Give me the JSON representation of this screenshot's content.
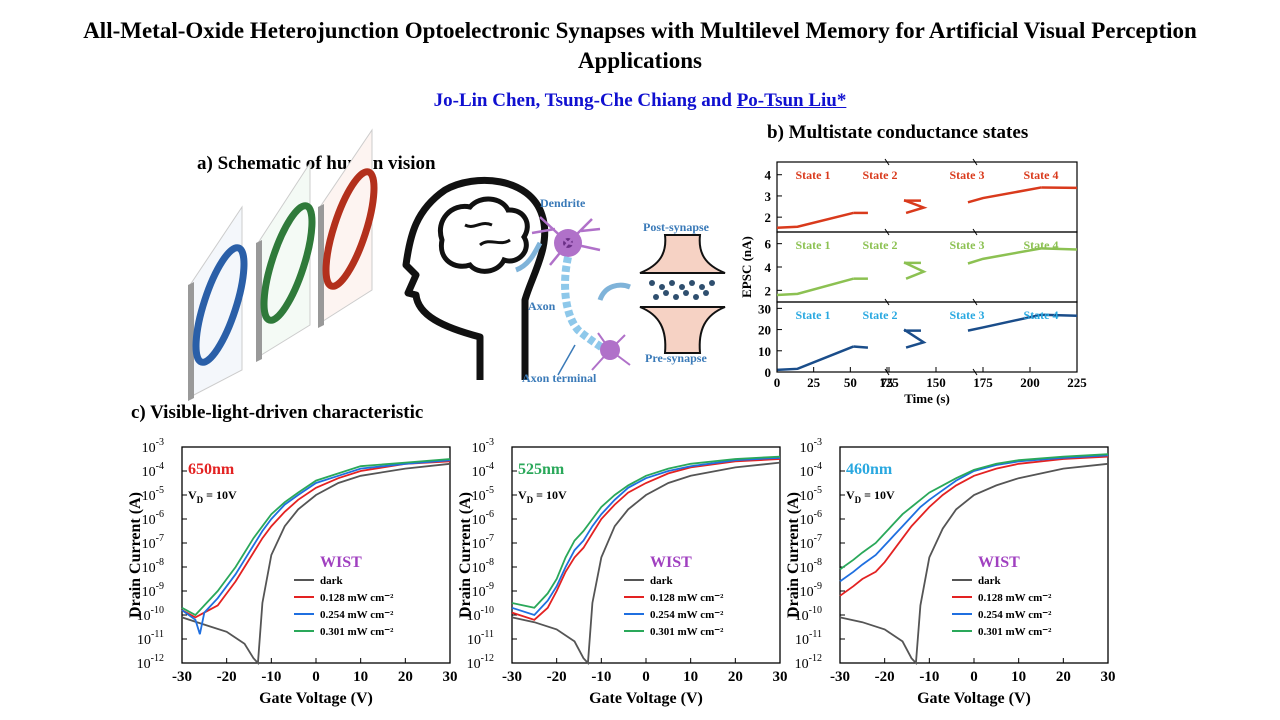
{
  "title": "All-Metal-Oxide Heterojunction Optoelectronic Synapses with Multilevel Memory for Artificial Visual Perception Applications",
  "authors": {
    "plain": "Jo-Lin Chen, Tsung-Che Chiang and ",
    "underlined": "Po-Tsun Liu*"
  },
  "panel_a": {
    "heading": "a) Schematic of human vision",
    "labels": {
      "dendrite": "Dendrite",
      "axon": "Axon",
      "axon_terminal": "Axon terminal",
      "post": "Post-synapse",
      "pre": "Pre-synapse"
    }
  },
  "panel_b": {
    "heading": "b) Multistate conductance states"
  },
  "panel_c": {
    "heading": "c) Visible-light-driven characteristic"
  },
  "colors": {
    "author": "#1010d0",
    "red": "#e32222",
    "blue": "#1f6fe0",
    "green": "#2aa85a",
    "dark": "#555555",
    "wist": "#a040c0",
    "b_red": "#d93a1c",
    "b_green": "#8cc152",
    "b_blue": "#1a4d8a",
    "b_label_blue": "#29a8e0"
  },
  "chart_data": [
    {
      "type": "line",
      "title": "b) Multistate conductance states",
      "xlabel": "Time (s)",
      "ylabel": "EPSC (nA)",
      "xticks": [
        "0",
        "25",
        "50",
        "75",
        "125",
        "150",
        "175",
        "200",
        "225"
      ],
      "panels": [
        {
          "yticks": [
            "2",
            "3",
            "4"
          ],
          "ylim": [
            1.3,
            4.6
          ],
          "color_name": "red",
          "state_labels": [
            "State 1",
            "State 2",
            "State 3",
            "State 4"
          ],
          "segments": [
            {
              "x": [
                0,
                14,
                52
              ],
              "y": [
                1.5,
                1.55,
                2.2
              ]
            },
            {
              "x": [
                52,
                62
              ],
              "y": [
                2.2,
                2.2
              ]
            },
            {
              "x": [
                88,
                100,
                133
              ],
              "y": [
                2.2,
                2.45,
                2.8
              ]
            },
            {
              "x": [
                133,
                142
              ],
              "y": [
                2.78,
                2.78
              ]
            },
            {
              "x": [
                167,
                175,
                206
              ],
              "y": [
                2.7,
                2.9,
                3.4
              ]
            },
            {
              "x": [
                206,
                225
              ],
              "y": [
                3.4,
                3.38
              ]
            }
          ]
        },
        {
          "yticks": [
            "2",
            "4",
            "6"
          ],
          "ylim": [
            1.0,
            7.0
          ],
          "color_name": "green",
          "state_labels": [
            "State 1",
            "State 2",
            "State 3",
            "State 4"
          ],
          "segments": [
            {
              "x": [
                0,
                14,
                52
              ],
              "y": [
                1.6,
                1.7,
                3.0
              ]
            },
            {
              "x": [
                52,
                62
              ],
              "y": [
                3.0,
                3.0
              ]
            },
            {
              "x": [
                88,
                100,
                133
              ],
              "y": [
                3.0,
                3.6,
                4.4
              ]
            },
            {
              "x": [
                133,
                142
              ],
              "y": [
                4.35,
                4.35
              ]
            },
            {
              "x": [
                167,
                175,
                206
              ],
              "y": [
                4.3,
                4.7,
                5.6
              ]
            },
            {
              "x": [
                206,
                225
              ],
              "y": [
                5.6,
                5.5
              ]
            }
          ]
        },
        {
          "yticks": [
            "0",
            "10",
            "20",
            "30"
          ],
          "ylim": [
            0,
            33
          ],
          "color_name": "blue",
          "state_labels": [
            "State 1",
            "State 2",
            "State 3",
            "State 4"
          ],
          "segments": [
            {
              "x": [
                0,
                14,
                52
              ],
              "y": [
                1,
                1.5,
                12
              ]
            },
            {
              "x": [
                52,
                62
              ],
              "y": [
                12,
                11.5
              ]
            },
            {
              "x": [
                88,
                100,
                133
              ],
              "y": [
                11.5,
                14,
                20
              ]
            },
            {
              "x": [
                133,
                142
              ],
              "y": [
                19.5,
                19.5
              ]
            },
            {
              "x": [
                167,
                175,
                206
              ],
              "y": [
                19.5,
                21,
                27
              ]
            },
            {
              "x": [
                206,
                225
              ],
              "y": [
                27,
                26.5
              ]
            }
          ]
        }
      ]
    },
    {
      "type": "line",
      "log_y": true,
      "label": "650nm",
      "label_color": "#e32222",
      "condition": "V_D = 10V",
      "legend_title": "WIST",
      "legend": [
        "dark",
        "0.128 mW cm⁻²",
        "0.254 mW cm⁻²",
        "0.301 mW cm⁻²"
      ],
      "xlabel": "Gate Voltage (V)",
      "ylabel": "Drain Current (A)",
      "xlim": [
        -30,
        30
      ],
      "ylim_exp": [
        -12,
        -3
      ],
      "series": [
        {
          "color_name": "dark",
          "x": [
            -30,
            -25,
            -20,
            -16,
            -14,
            -13,
            -12,
            -10,
            -7,
            -4,
            0,
            5,
            10,
            20,
            30
          ],
          "y_exp": [
            -10.1,
            -10.4,
            -10.7,
            -11.2,
            -11.8,
            -12,
            -9.5,
            -7.5,
            -6.3,
            -5.6,
            -5.0,
            -4.5,
            -4.2,
            -3.9,
            -3.7
          ]
        },
        {
          "color_name": "red",
          "x": [
            -30,
            -27,
            -25,
            -22,
            -20,
            -18,
            -16,
            -14,
            -12,
            -10,
            -7,
            -4,
            0,
            5,
            10,
            20,
            30
          ],
          "y_exp": [
            -9.8,
            -10.1,
            -9.9,
            -9.6,
            -9.1,
            -8.6,
            -8.0,
            -7.4,
            -6.8,
            -6.3,
            -5.7,
            -5.2,
            -4.7,
            -4.3,
            -4.0,
            -3.7,
            -3.6
          ]
        },
        {
          "color_name": "blue",
          "x": [
            -30,
            -27,
            -26,
            -25,
            -22,
            -20,
            -18,
            -16,
            -14,
            -12,
            -10,
            -7,
            -4,
            0,
            5,
            10,
            20,
            30
          ],
          "y_exp": [
            -9.8,
            -10.2,
            -10.8,
            -9.9,
            -9.3,
            -8.8,
            -8.3,
            -7.7,
            -7.1,
            -6.5,
            -6.0,
            -5.4,
            -5.0,
            -4.5,
            -4.2,
            -3.9,
            -3.7,
            -3.55
          ]
        },
        {
          "color_name": "green",
          "x": [
            -30,
            -27,
            -25,
            -22,
            -20,
            -18,
            -16,
            -14,
            -12,
            -10,
            -7,
            -4,
            0,
            5,
            10,
            20,
            30
          ],
          "y_exp": [
            -9.7,
            -10.0,
            -9.6,
            -9.0,
            -8.5,
            -8.0,
            -7.4,
            -6.8,
            -6.3,
            -5.8,
            -5.3,
            -4.9,
            -4.4,
            -4.1,
            -3.8,
            -3.65,
            -3.5
          ]
        }
      ]
    },
    {
      "type": "line",
      "log_y": true,
      "label": "525nm",
      "label_color": "#2aa85a",
      "condition": "V_D = 10V",
      "legend_title": "WIST",
      "legend": [
        "dark",
        "0.128 mW cm⁻²",
        "0.254 mW cm⁻²",
        "0.301 mW cm⁻²"
      ],
      "xlabel": "Gate Voltage (V)",
      "ylabel": "Drain Current (A)",
      "xlim": [
        -30,
        30
      ],
      "ylim_exp": [
        -12,
        -3
      ],
      "series": [
        {
          "color_name": "dark",
          "x": [
            -30,
            -25,
            -20,
            -16,
            -14,
            -13,
            -12,
            -10,
            -7,
            -4,
            0,
            5,
            10,
            20,
            30
          ],
          "y_exp": [
            -10.1,
            -10.3,
            -10.6,
            -11.1,
            -11.8,
            -12,
            -9.5,
            -7.6,
            -6.3,
            -5.6,
            -5.0,
            -4.5,
            -4.2,
            -3.85,
            -3.65
          ]
        },
        {
          "color_name": "red",
          "x": [
            -30,
            -25,
            -22,
            -20,
            -18,
            -16,
            -14,
            -12,
            -10,
            -7,
            -4,
            0,
            5,
            10,
            20,
            30
          ],
          "y_exp": [
            -9.9,
            -10.2,
            -9.7,
            -9.0,
            -8.2,
            -7.6,
            -7.2,
            -6.6,
            -6.0,
            -5.4,
            -4.9,
            -4.5,
            -4.1,
            -3.85,
            -3.6,
            -3.5
          ]
        },
        {
          "color_name": "blue",
          "x": [
            -30,
            -25,
            -22,
            -20,
            -18,
            -16,
            -14,
            -12,
            -10,
            -7,
            -4,
            0,
            5,
            10,
            20,
            30
          ],
          "y_exp": [
            -9.7,
            -10.0,
            -9.4,
            -8.8,
            -8.0,
            -7.3,
            -6.9,
            -6.3,
            -5.8,
            -5.2,
            -4.7,
            -4.3,
            -4.0,
            -3.8,
            -3.55,
            -3.45
          ]
        },
        {
          "color_name": "green",
          "x": [
            -30,
            -25,
            -22,
            -20,
            -18,
            -16,
            -14,
            -12,
            -10,
            -7,
            -4,
            0,
            5,
            10,
            20,
            30
          ],
          "y_exp": [
            -9.5,
            -9.7,
            -9.1,
            -8.5,
            -7.6,
            -6.9,
            -6.5,
            -6.0,
            -5.5,
            -5.0,
            -4.6,
            -4.2,
            -3.9,
            -3.7,
            -3.5,
            -3.4
          ]
        }
      ]
    },
    {
      "type": "line",
      "log_y": true,
      "label": "460nm",
      "label_color": "#29a8e0",
      "condition": "V_D = 10V",
      "legend_title": "WIST",
      "legend": [
        "dark",
        "0.128 mW cm⁻²",
        "0.254 mW cm⁻²",
        "0.301 mW cm⁻²"
      ],
      "xlabel": "Gate Voltage (V)",
      "ylabel": "Drain Current (A)",
      "xlim": [
        -30,
        30
      ],
      "ylim_exp": [
        -12,
        -3
      ],
      "series": [
        {
          "color_name": "dark",
          "x": [
            -30,
            -25,
            -20,
            -16,
            -14,
            -13,
            -12,
            -10,
            -7,
            -4,
            0,
            5,
            10,
            20,
            30
          ],
          "y_exp": [
            -10.1,
            -10.3,
            -10.6,
            -11.1,
            -11.8,
            -12,
            -9.6,
            -7.6,
            -6.4,
            -5.6,
            -5.0,
            -4.6,
            -4.3,
            -3.9,
            -3.7
          ]
        },
        {
          "color_name": "red",
          "x": [
            -30,
            -27,
            -25,
            -22,
            -20,
            -18,
            -16,
            -14,
            -12,
            -10,
            -7,
            -4,
            0,
            5,
            10,
            20,
            30
          ],
          "y_exp": [
            -9.2,
            -8.8,
            -8.5,
            -8.2,
            -7.8,
            -7.3,
            -6.8,
            -6.3,
            -5.9,
            -5.5,
            -5.0,
            -4.6,
            -4.2,
            -3.9,
            -3.7,
            -3.5,
            -3.4
          ]
        },
        {
          "color_name": "blue",
          "x": [
            -30,
            -27,
            -25,
            -22,
            -20,
            -18,
            -16,
            -14,
            -12,
            -10,
            -7,
            -4,
            0,
            5,
            10,
            20,
            30
          ],
          "y_exp": [
            -8.6,
            -8.2,
            -7.9,
            -7.5,
            -7.1,
            -6.7,
            -6.3,
            -5.9,
            -5.5,
            -5.2,
            -4.8,
            -4.4,
            -4.0,
            -3.75,
            -3.6,
            -3.45,
            -3.35
          ]
        },
        {
          "color_name": "green",
          "x": [
            -30,
            -27,
            -25,
            -22,
            -20,
            -18,
            -16,
            -14,
            -12,
            -10,
            -7,
            -4,
            0,
            5,
            10,
            20,
            30
          ],
          "y_exp": [
            -8.1,
            -7.7,
            -7.4,
            -7.0,
            -6.6,
            -6.2,
            -5.8,
            -5.5,
            -5.2,
            -4.9,
            -4.6,
            -4.3,
            -3.95,
            -3.7,
            -3.55,
            -3.4,
            -3.3
          ]
        }
      ]
    }
  ]
}
